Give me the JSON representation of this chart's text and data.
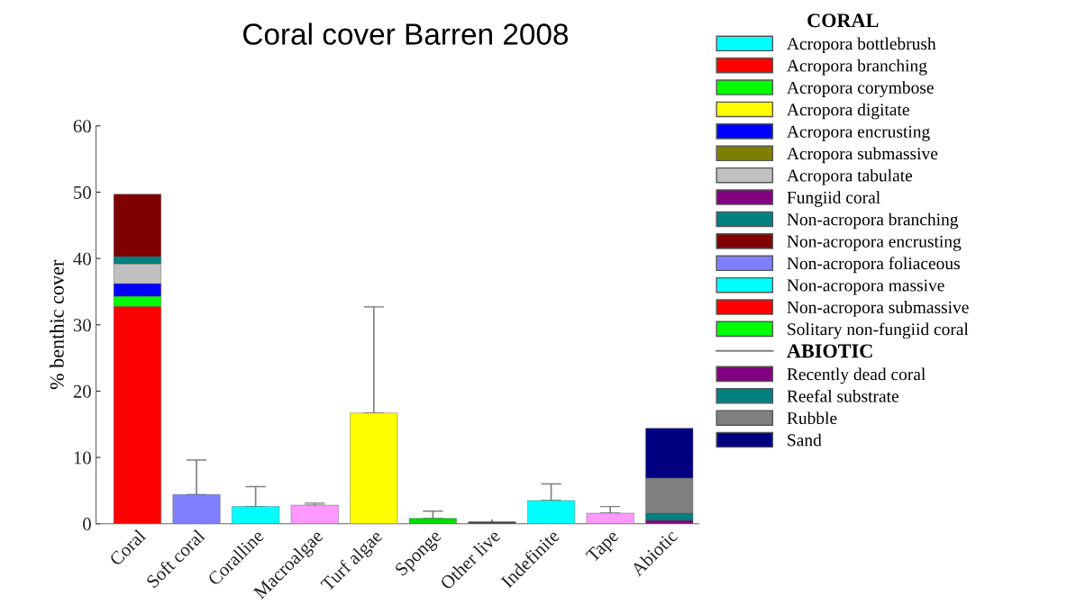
{
  "chart_data": {
    "type": "bar",
    "title": "Coral cover Barren 2008",
    "ylabel": "% benthic cover",
    "legend_title": "CORAL",
    "annotations": [
      "ABIOTIC"
    ],
    "categories": [
      "Coral",
      "Soft coral",
      "Coralline",
      "Macroalgae",
      "Turf algae",
      "Sponge",
      "Other live",
      "Indefinite",
      "Tape",
      "Abiotic"
    ],
    "stacked": true,
    "ylim": [
      0,
      60
    ],
    "yticks": [
      0,
      10,
      20,
      30,
      40,
      50,
      60
    ],
    "grid": false,
    "legend": "right",
    "series": [
      {
        "colors": [
          null,
          "#8080ff",
          "#00ffff",
          "#ff99ff",
          "#ffff00",
          "#00dd00",
          "#404040",
          "#00ffff",
          "#ff99ff",
          null
        ],
        "values": [
          null,
          4.4,
          2.6,
          2.8,
          16.7,
          0.8,
          0.3,
          3.5,
          1.6,
          null
        ],
        "errors": [
          null,
          [
            4.4,
            9.6
          ],
          [
            2.6,
            5.6
          ],
          [
            2.8,
            3.1
          ],
          [
            16.7,
            32.7
          ],
          [
            0.8,
            1.9
          ],
          null,
          [
            3.5,
            6.0
          ],
          [
            1.6,
            2.6
          ],
          null
        ]
      },
      {
        "name": "Acropora bottlebrush",
        "color": "#00ffff",
        "values": [
          0,
          null,
          null,
          null,
          null,
          null,
          null,
          null,
          null,
          null
        ]
      },
      {
        "name": "Acropora branching",
        "color": "#ff0000",
        "values": [
          32.8,
          null,
          null,
          null,
          null,
          null,
          null,
          null,
          null,
          null
        ]
      },
      {
        "name": "Acropora corymbose",
        "color": "#00ff00",
        "values": [
          1.5,
          null,
          null,
          null,
          null,
          null,
          null,
          null,
          null,
          null
        ]
      },
      {
        "name": "Acropora digitate",
        "color": "#ffff00",
        "values": [
          0,
          null,
          null,
          null,
          null,
          null,
          null,
          null,
          null,
          null
        ]
      },
      {
        "name": "Acropora encrusting",
        "color": "#0000ff",
        "values": [
          1.9,
          null,
          null,
          null,
          null,
          null,
          null,
          null,
          null,
          null
        ]
      },
      {
        "name": "Acropora submassive",
        "color": "#808000",
        "values": [
          0,
          null,
          null,
          null,
          null,
          null,
          null,
          null,
          null,
          null
        ]
      },
      {
        "name": "Acropora tabulate",
        "color": "#c0c0c0",
        "values": [
          3.0,
          null,
          null,
          null,
          null,
          null,
          null,
          null,
          null,
          null
        ]
      },
      {
        "name": "Fungiid coral",
        "color": "#800080",
        "values": [
          0,
          null,
          null,
          null,
          null,
          null,
          null,
          null,
          null,
          null
        ]
      },
      {
        "name": "Non-acropora branching",
        "color": "#008080",
        "values": [
          1.1,
          null,
          null,
          null,
          null,
          null,
          null,
          null,
          null,
          null
        ]
      },
      {
        "name": "Non-acropora encrusting",
        "color": "#800000",
        "values": [
          9.4,
          null,
          null,
          null,
          null,
          null,
          null,
          null,
          null,
          null
        ]
      },
      {
        "name": "Non-acropora foliaceous",
        "color": "#8080ff",
        "values": [
          0,
          null,
          null,
          null,
          null,
          null,
          null,
          null,
          null,
          null
        ]
      },
      {
        "name": "Non-acropora massive",
        "color": "#00ffff",
        "values": [
          0,
          null,
          null,
          null,
          null,
          null,
          null,
          null,
          null,
          null
        ]
      },
      {
        "name": "Non-acropora submassive",
        "color": "#ff0000",
        "values": [
          0,
          null,
          null,
          null,
          null,
          null,
          null,
          null,
          null,
          null
        ]
      },
      {
        "name": "Solitary non-fungiid coral",
        "color": "#00ff00",
        "values": [
          0,
          null,
          null,
          null,
          null,
          null,
          null,
          null,
          null,
          null
        ]
      },
      {
        "name": "Recently dead coral",
        "color": "#800080",
        "values": [
          null,
          null,
          null,
          null,
          null,
          null,
          null,
          null,
          null,
          0.5
        ]
      },
      {
        "name": "Reefal substrate",
        "color": "#008080",
        "values": [
          null,
          null,
          null,
          null,
          null,
          null,
          null,
          null,
          null,
          1.1
        ]
      },
      {
        "name": "Rubble",
        "color": "#808080",
        "values": [
          null,
          null,
          null,
          null,
          null,
          null,
          null,
          null,
          null,
          5.3
        ]
      },
      {
        "name": "Sand",
        "color": "#000080",
        "values": [
          null,
          null,
          null,
          null,
          null,
          null,
          null,
          null,
          null,
          7.5
        ]
      }
    ]
  }
}
